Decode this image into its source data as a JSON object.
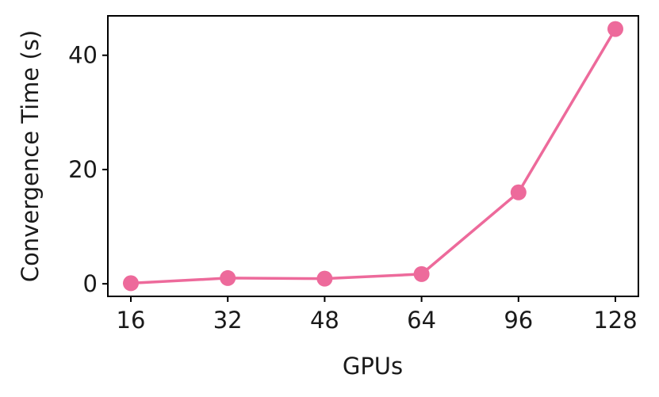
{
  "chart_data": {
    "type": "line",
    "categories": [
      "16",
      "32",
      "48",
      "64",
      "96",
      "128"
    ],
    "series": [
      {
        "values": [
          0.1,
          1.0,
          0.9,
          1.7,
          16.0,
          44.6
        ],
        "color": "#ed6a9b",
        "marker": "circle"
      }
    ],
    "xlabel": "GPUs",
    "ylabel": "Convergence Time (s)",
    "ylim": [
      -2.2,
      46.9
    ],
    "yticks": [
      0,
      20,
      40
    ],
    "grid": false
  }
}
